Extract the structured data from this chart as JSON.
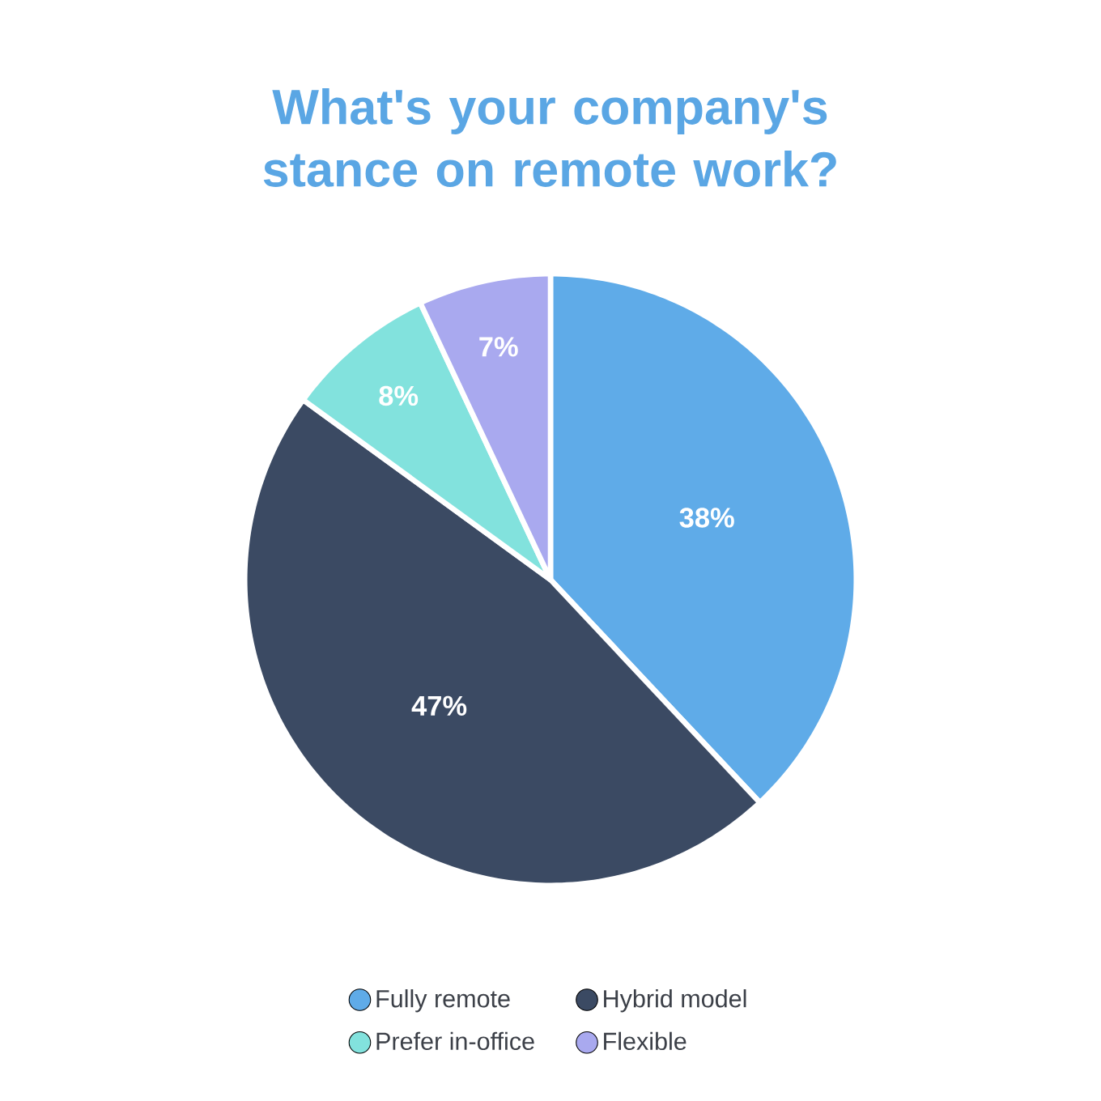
{
  "chart_data": {
    "type": "pie",
    "title": "What's your company's stance on remote work?",
    "categories": [
      "Fully remote",
      "Hybrid model",
      "Prefer in-office",
      "Flexible"
    ],
    "values": [
      38,
      47,
      8,
      7
    ],
    "colors": [
      "#5fabe8",
      "#3b4a63",
      "#82e2dd",
      "#a9a9ef"
    ],
    "value_labels": [
      "38%",
      "47%",
      "8%",
      "7%"
    ],
    "legend": "bottom"
  }
}
